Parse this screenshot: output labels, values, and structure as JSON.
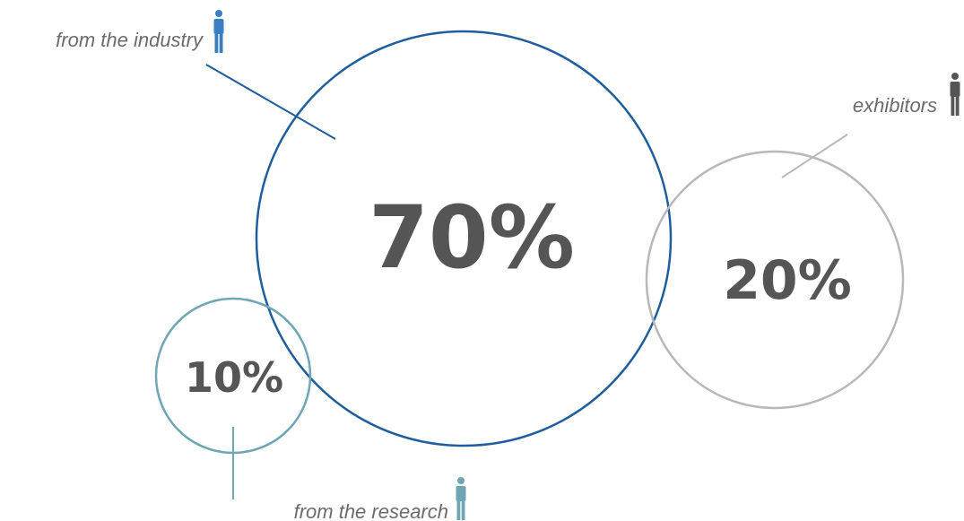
{
  "colors": {
    "industry": "#1f5e9c",
    "exhibitors": "#b8b8b8",
    "research": "#6fa6b4",
    "percent_text": "#555555",
    "label_text": "#6b6b6b",
    "industry_icon": "#3a7fc1",
    "exhibitors_icon": "#555555",
    "research_icon": "#6fa6b4"
  },
  "segments": [
    {
      "key": "industry",
      "percent": "70%",
      "label": "from the industry",
      "icon": "person-icon"
    },
    {
      "key": "exhibitors",
      "percent": "20%",
      "label": "exhibitors",
      "icon": "person-icon"
    },
    {
      "key": "research",
      "percent": "10%",
      "label": "from the research",
      "icon": "person-icon"
    }
  ]
}
